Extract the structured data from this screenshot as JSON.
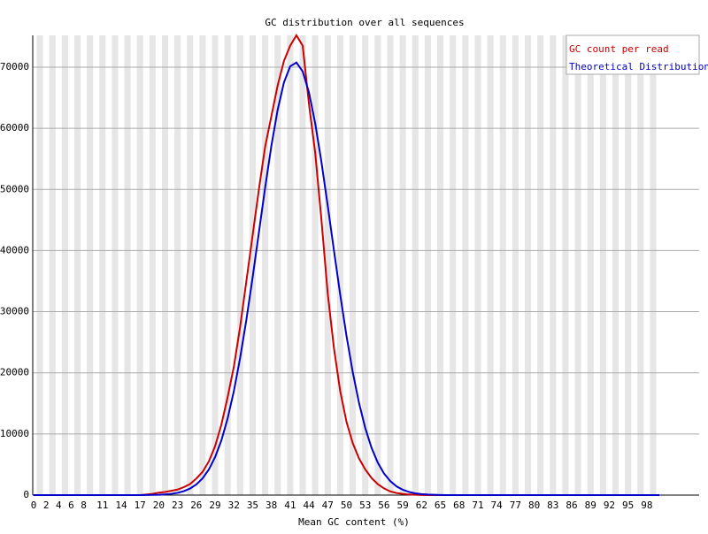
{
  "chart_data": {
    "type": "line",
    "title": "GC distribution over all sequences",
    "x_label": "Mean GC content (%)",
    "categories": [
      "0",
      null,
      "2",
      null,
      "4",
      null,
      "6",
      null,
      "8",
      null,
      null,
      "11",
      null,
      null,
      "14",
      null,
      null,
      "17",
      null,
      null,
      "20",
      null,
      null,
      "23",
      null,
      null,
      "26",
      null,
      null,
      "29",
      null,
      null,
      "32",
      null,
      null,
      "35",
      null,
      null,
      "38",
      null,
      null,
      "41",
      null,
      null,
      "44",
      null,
      null,
      "47",
      null,
      null,
      "50",
      null,
      null,
      "53",
      null,
      null,
      "56",
      null,
      null,
      "59",
      null,
      null,
      "62",
      null,
      null,
      "65",
      null,
      null,
      "68",
      null,
      null,
      "71",
      null,
      null,
      "74",
      null,
      null,
      "77",
      null,
      null,
      "80",
      null,
      null,
      "83",
      null,
      null,
      "86",
      null,
      null,
      "89",
      null,
      null,
      "92",
      null,
      null,
      "95",
      null,
      null,
      "98",
      null,
      null
    ],
    "series": [
      {
        "name": "GC count per read",
        "color": "#cc0000",
        "values": [
          0,
          0,
          0,
          0,
          0,
          0,
          0,
          0,
          0,
          0,
          0,
          0,
          0,
          0,
          0,
          0,
          0,
          0,
          100,
          200,
          400,
          500,
          700,
          900,
          1300,
          1800,
          2700,
          3800,
          5500,
          8000,
          11500,
          16000,
          21000,
          27500,
          35000,
          42500,
          50000,
          57000,
          62000,
          67000,
          71000,
          73500,
          75200,
          73500,
          64000,
          56000,
          45000,
          33000,
          24000,
          17000,
          12000,
          8500,
          6000,
          4200,
          2800,
          1800,
          1100,
          600,
          350,
          200,
          100,
          50,
          20,
          0,
          0,
          0,
          0,
          0,
          0,
          0,
          0,
          0,
          0,
          0,
          0,
          0,
          0,
          0,
          0,
          0,
          0,
          0,
          0,
          0,
          0,
          0,
          0,
          0,
          0,
          0,
          0,
          0,
          0,
          0,
          0,
          0,
          0,
          0,
          0,
          0,
          0
        ]
      },
      {
        "name": "Theoretical Distribution",
        "color": "#0000cc",
        "values": [
          0,
          0,
          0,
          0,
          0,
          0,
          0,
          0,
          0,
          0,
          0,
          0,
          0,
          0,
          0,
          0,
          0,
          0,
          16,
          31,
          61,
          114,
          208,
          371,
          638,
          1072,
          1735,
          2734,
          4180,
          6210,
          8930,
          12520,
          17000,
          22420,
          28670,
          35600,
          42950,
          50290,
          57150,
          63020,
          67480,
          70130,
          70760,
          69300,
          65890,
          60800,
          54480,
          47370,
          40000,
          32780,
          26060,
          20120,
          15090,
          10980,
          7750,
          5310,
          3530,
          2290,
          1430,
          870,
          517,
          295,
          165,
          89,
          47,
          24,
          0,
          0,
          0,
          0,
          0,
          0,
          0,
          0,
          0,
          0,
          0,
          0,
          0,
          0,
          0,
          0,
          0,
          0,
          0,
          0,
          0,
          0,
          0,
          0,
          0,
          0,
          0,
          0,
          0,
          0,
          0,
          0,
          0,
          0,
          0
        ]
      }
    ],
    "ylim": [
      0,
      75200
    ],
    "yticks": [
      0,
      10000,
      20000,
      30000,
      40000,
      50000,
      60000,
      70000
    ],
    "grid": true,
    "legend": "top-right"
  }
}
